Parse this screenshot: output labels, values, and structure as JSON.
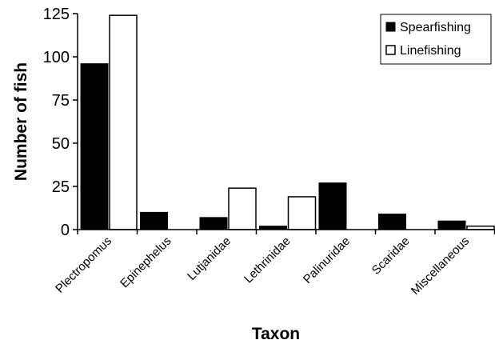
{
  "chart_data": {
    "type": "bar",
    "xlabel": "Taxon",
    "ylabel": "Number of fish",
    "ylim": [
      0,
      125
    ],
    "yticks": [
      0,
      25,
      50,
      75,
      100,
      125
    ],
    "categories": [
      "Plectropomus",
      "Epinephelus",
      "Lutjanidae",
      "Lethrinidae",
      "Palinuridae",
      "Scaridae",
      "Miscellaneous"
    ],
    "series": [
      {
        "name": "Spearfishing",
        "color": "#000000",
        "values": [
          96,
          10,
          7,
          2,
          27,
          9,
          5
        ]
      },
      {
        "name": "Linefishing",
        "color": "#ffffff",
        "values": [
          124,
          0,
          24,
          19,
          0,
          0,
          2
        ]
      }
    ],
    "legend": "top-right",
    "grid": false
  }
}
